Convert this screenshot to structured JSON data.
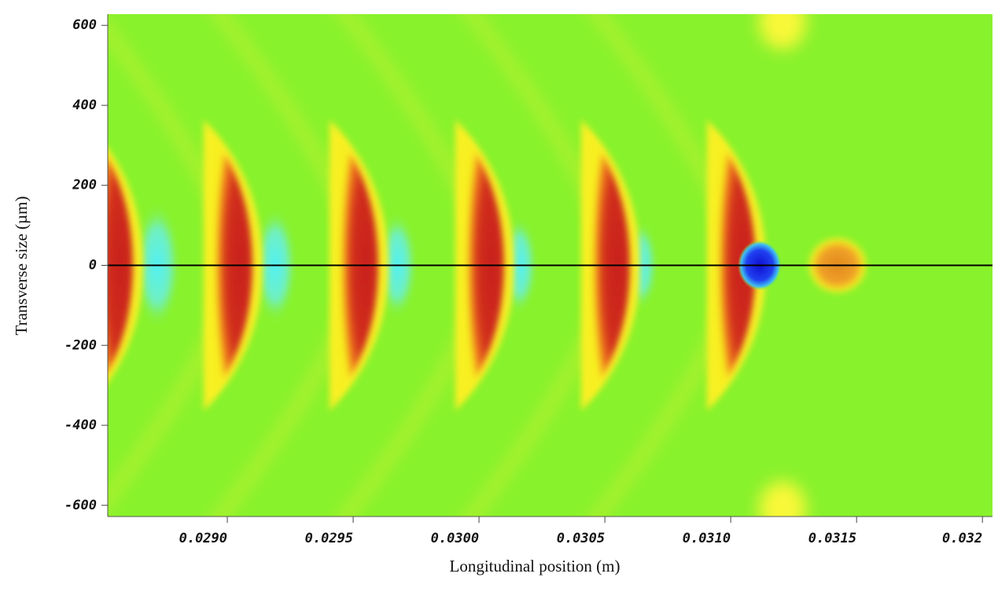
{
  "chart_data": {
    "type": "heatmap",
    "xlabel": "Longitudinal position (m)",
    "ylabel": "Transverse size (µm)",
    "xlim": [
      0.028525,
      0.03204
    ],
    "ylim": [
      -628,
      628
    ],
    "xticks": [
      {
        "value": 0.029,
        "label": "0.0290"
      },
      {
        "value": 0.0295,
        "label": "0.0295"
      },
      {
        "value": 0.03,
        "label": "0.0300"
      },
      {
        "value": 0.0305,
        "label": "0.0305"
      },
      {
        "value": 0.031,
        "label": "0.0310"
      },
      {
        "value": 0.0315,
        "label": "0.0315"
      },
      0.032
    ],
    "yticks": [
      -600,
      -400,
      -200,
      0,
      200,
      400,
      600
    ],
    "hline": 0,
    "background_color": "#88f22c"
  }
}
